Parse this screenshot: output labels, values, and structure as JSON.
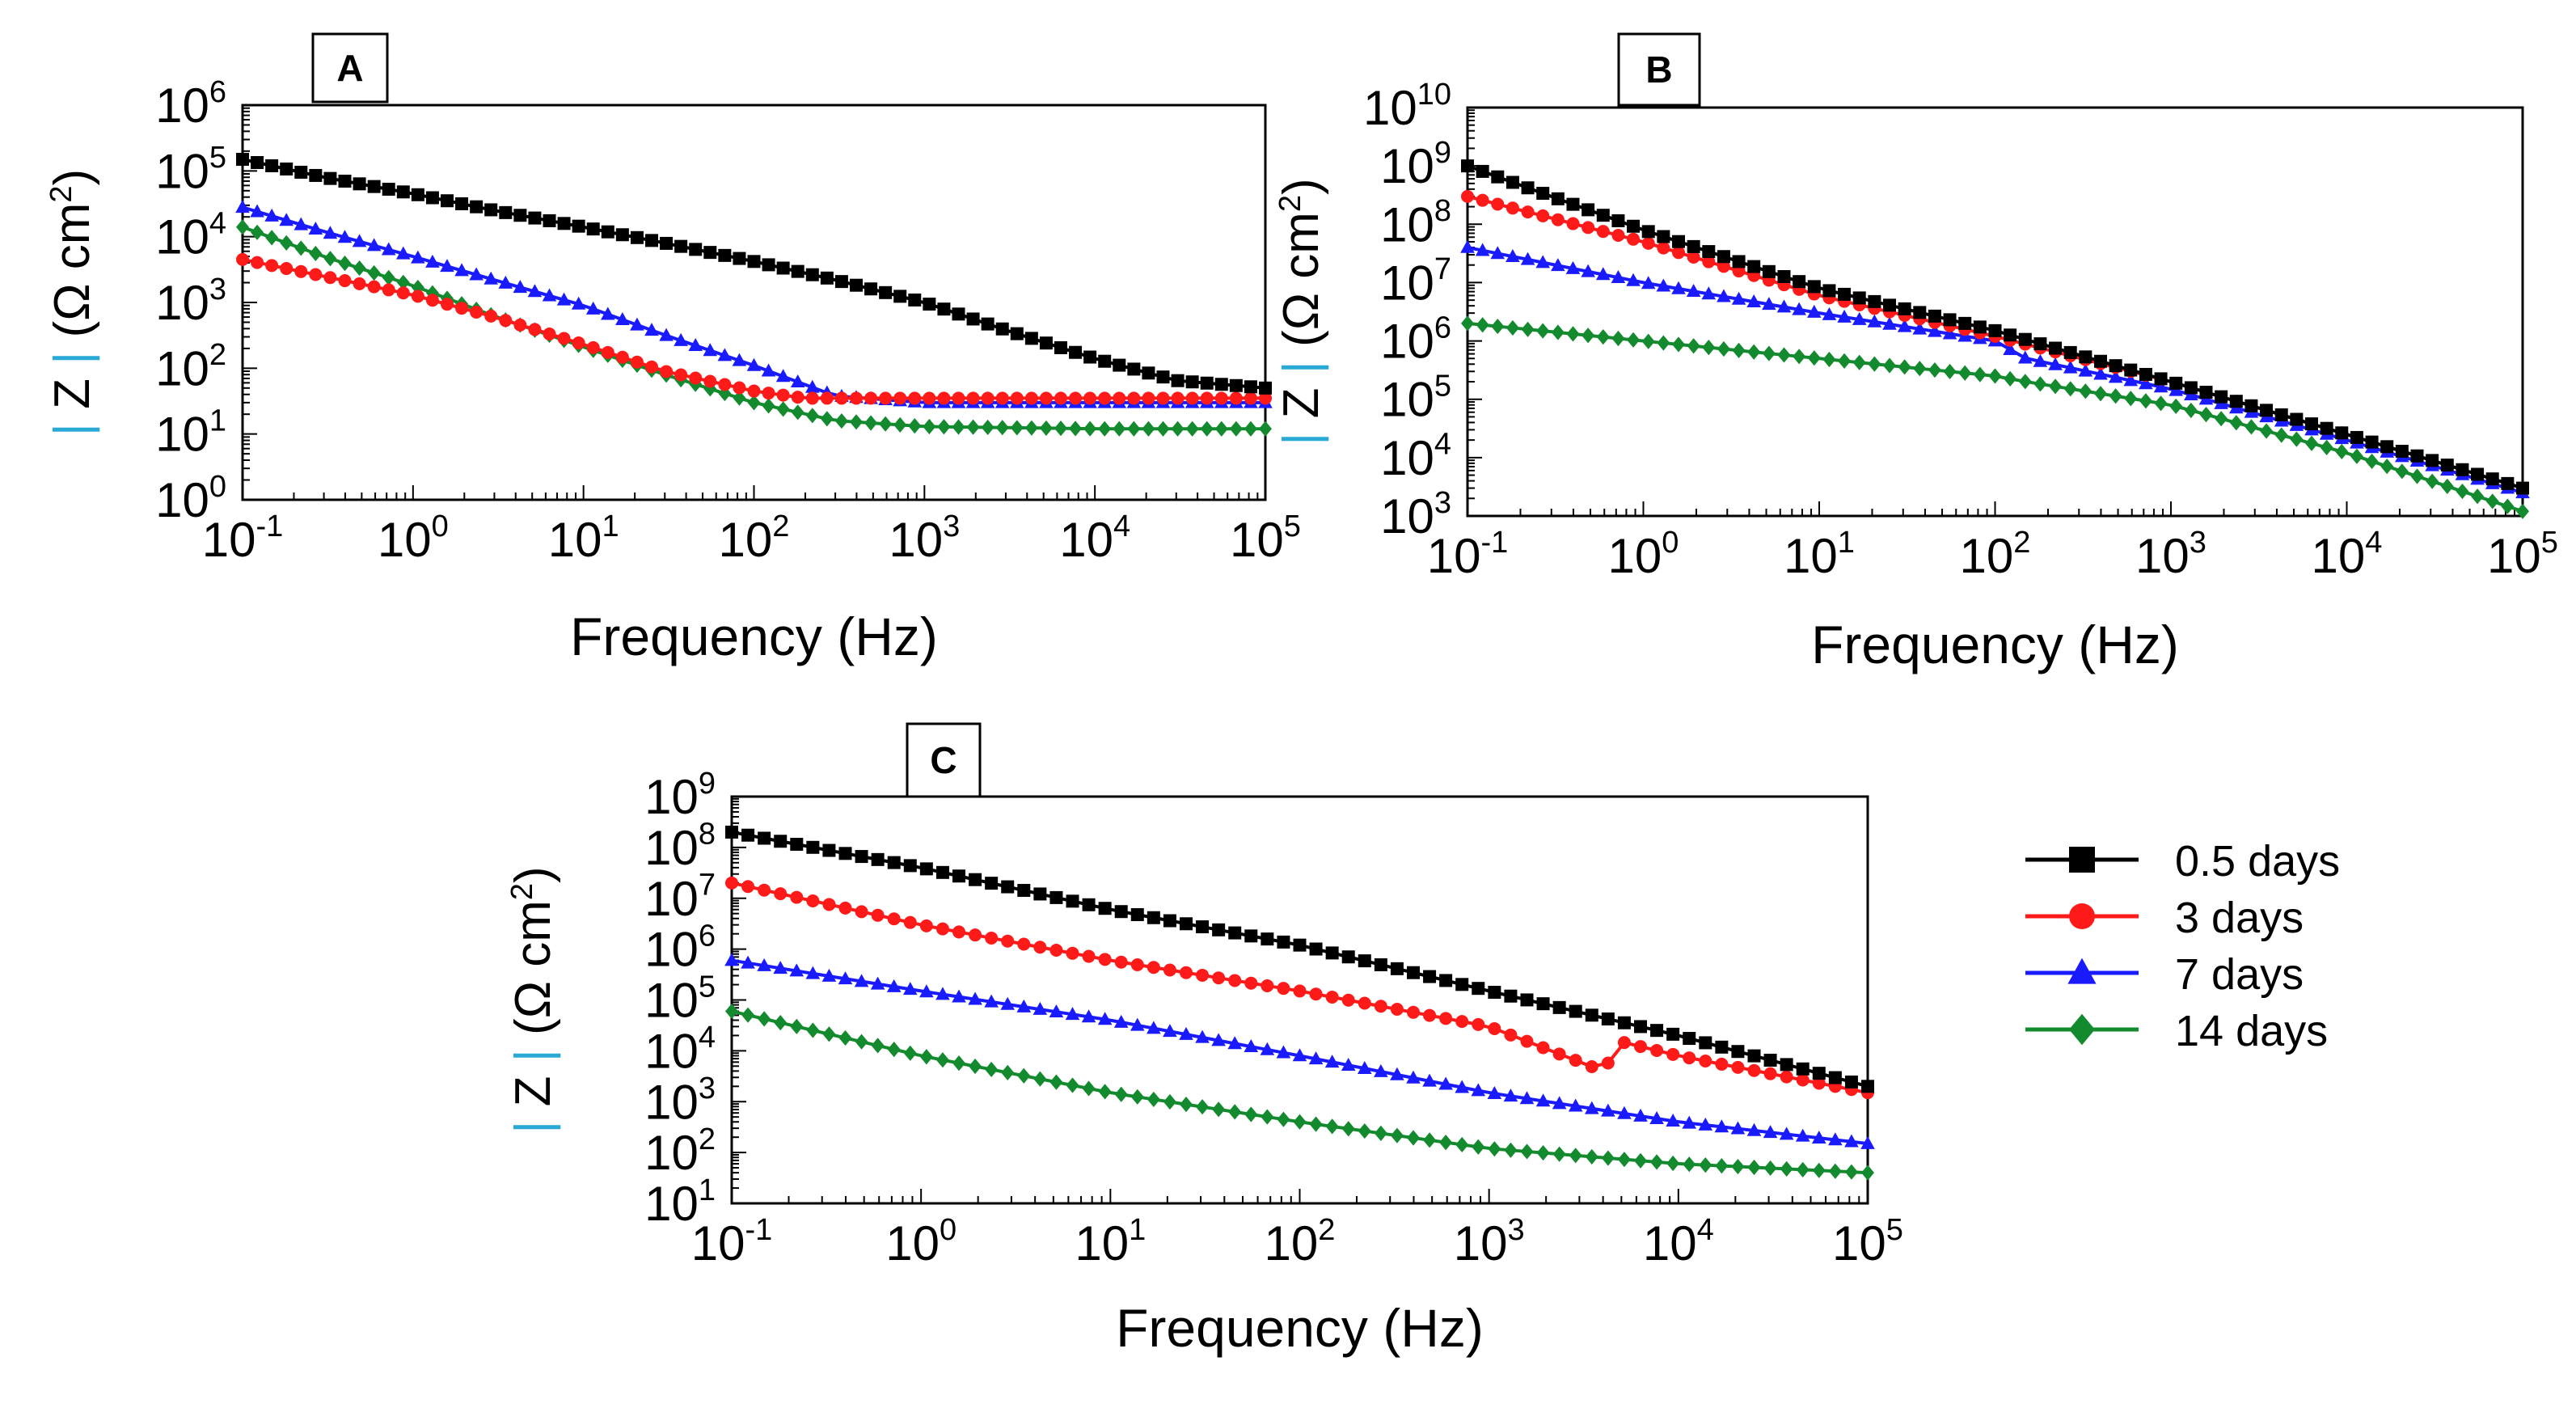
{
  "chart_data": [
    {
      "type": "line",
      "panel": "A",
      "xlabel": "Frequency (Hz)",
      "ylabel": "|Z| (Ω cm²)",
      "xscale": "log",
      "yscale": "log",
      "xlim": [
        0.1,
        100000
      ],
      "ylim": [
        1,
        1000000
      ],
      "xticks": [
        "10^-1",
        "10^0",
        "10^1",
        "10^2",
        "10^3",
        "10^4",
        "10^5"
      ],
      "yticks": [
        "10^0",
        "10^1",
        "10^2",
        "10^3",
        "10^4",
        "10^5",
        "10^6"
      ],
      "series": [
        {
          "name": "0.5 days",
          "x": [
            0.1,
            0.3,
            1,
            3,
            10,
            30,
            100,
            300,
            1000,
            3000,
            10000,
            30000,
            100000
          ],
          "y": [
            150000,
            80000,
            45000,
            25000,
            14000,
            8000,
            4200,
            2200,
            1000,
            380,
            140,
            65,
            50
          ]
        },
        {
          "name": "3 days",
          "x": [
            0.1,
            0.3,
            1,
            3,
            10,
            30,
            100,
            200,
            500,
            1000,
            10000,
            100000
          ],
          "y": [
            4500,
            2500,
            1300,
            600,
            230,
            90,
            45,
            35,
            35,
            35,
            35,
            35
          ]
        },
        {
          "name": "7 days",
          "x": [
            0.1,
            0.3,
            1,
            3,
            10,
            30,
            100,
            300,
            1000,
            10000,
            100000
          ],
          "y": [
            28000,
            12000,
            5000,
            2200,
            900,
            320,
            110,
            38,
            30,
            30,
            30
          ]
        },
        {
          "name": "14 days",
          "x": [
            0.1,
            0.3,
            1,
            3,
            10,
            30,
            100,
            300,
            1000,
            10000,
            100000
          ],
          "y": [
            14000,
            5000,
            1800,
            620,
            210,
            80,
            30,
            16,
            13,
            12,
            12
          ]
        }
      ]
    },
    {
      "type": "line",
      "panel": "B",
      "xlabel": "Frequency (Hz)",
      "ylabel": "|Z| (Ω cm²)",
      "xscale": "log",
      "yscale": "log",
      "xlim": [
        0.1,
        100000
      ],
      "ylim": [
        1000,
        10000000000
      ],
      "xticks": [
        "10^-1",
        "10^0",
        "10^1",
        "10^2",
        "10^3",
        "10^4",
        "10^5"
      ],
      "yticks": [
        "10^3",
        "10^4",
        "10^5",
        "10^6",
        "10^7",
        "10^8",
        "10^9",
        "10^10"
      ],
      "series": [
        {
          "name": "0.5 days",
          "x": [
            0.1,
            1,
            10,
            100,
            1000,
            10000,
            100000
          ],
          "y": [
            1000000000,
            80000000,
            8000000,
            1500000,
            200000,
            25000,
            3000
          ]
        },
        {
          "name": "3 days",
          "x": [
            0.1,
            1,
            10,
            100,
            1000,
            10000,
            100000
          ],
          "y": [
            300000000,
            50000000,
            6000000,
            1200000,
            200000,
            25000,
            3000
          ]
        },
        {
          "name": "7 days",
          "x": [
            0.1,
            1,
            10,
            100,
            150,
            1000,
            10000,
            100000
          ],
          "y": [
            40000000,
            10000000,
            3000000,
            1000000,
            500000,
            150000,
            20000,
            2500
          ]
        },
        {
          "name": "14 days",
          "x": [
            0.1,
            1,
            10,
            100,
            150,
            1000,
            10000,
            100000
          ],
          "y": [
            2000000,
            1000000,
            500000,
            250000,
            200000,
            80000,
            12000,
            1200
          ]
        }
      ]
    },
    {
      "type": "line",
      "panel": "C",
      "xlabel": "Frequency (Hz)",
      "ylabel": "|Z| (Ω cm²)",
      "xscale": "log",
      "yscale": "log",
      "xlim": [
        0.1,
        100000
      ],
      "ylim": [
        10,
        1000000000
      ],
      "xticks": [
        "10^-1",
        "10^0",
        "10^1",
        "10^2",
        "10^3",
        "10^4",
        "10^5"
      ],
      "yticks": [
        "10^1",
        "10^2",
        "10^3",
        "10^4",
        "10^5",
        "10^6",
        "10^7",
        "10^8",
        "10^9"
      ],
      "series": [
        {
          "name": "0.5 days",
          "x": [
            0.1,
            1,
            10,
            100,
            1000,
            10000,
            100000
          ],
          "y": [
            200000000,
            40000000,
            6000000,
            1200000,
            150000,
            20000,
            2000
          ]
        },
        {
          "name": "3 days",
          "x": [
            0.1,
            1,
            10,
            100,
            1000,
            4000,
            5000,
            10000,
            100000
          ],
          "y": [
            20000000,
            3000000,
            600000,
            150000,
            30000,
            4000,
            15000,
            8000,
            1500
          ]
        },
        {
          "name": "7 days",
          "x": [
            0.1,
            1,
            10,
            100,
            1000,
            10000,
            100000
          ],
          "y": [
            600000,
            150000,
            40000,
            8000,
            1500,
            400,
            150
          ]
        },
        {
          "name": "14 days",
          "x": [
            0.1,
            1,
            10,
            100,
            1000,
            10000,
            100000
          ],
          "y": [
            60000,
            8000,
            1500,
            400,
            120,
            60,
            40
          ]
        }
      ]
    }
  ],
  "legend": {
    "entries": [
      "0.5 days",
      "3 days",
      "7 days",
      "14 days"
    ],
    "placement": "right-of-panel-C"
  },
  "text": {
    "panel_labels": [
      "A",
      "B",
      "C"
    ],
    "xlabel": "Frequency (Hz)",
    "ylabel_prefix": "Z",
    "ylabel_unit": "(Ω cm",
    "ylabel_sup": "2",
    "ylabel_close": ")"
  },
  "colors": {
    "0.5 days": "#000000",
    "3 days": "#ff1a1a",
    "7 days": "#1a1aff",
    "14 days": "#138a2e",
    "ylabel_bars": "#29a9d6",
    "axis": "#000000"
  },
  "markers": {
    "0.5 days": "square",
    "3 days": "circle",
    "7 days": "triangle",
    "14 days": "diamond"
  }
}
